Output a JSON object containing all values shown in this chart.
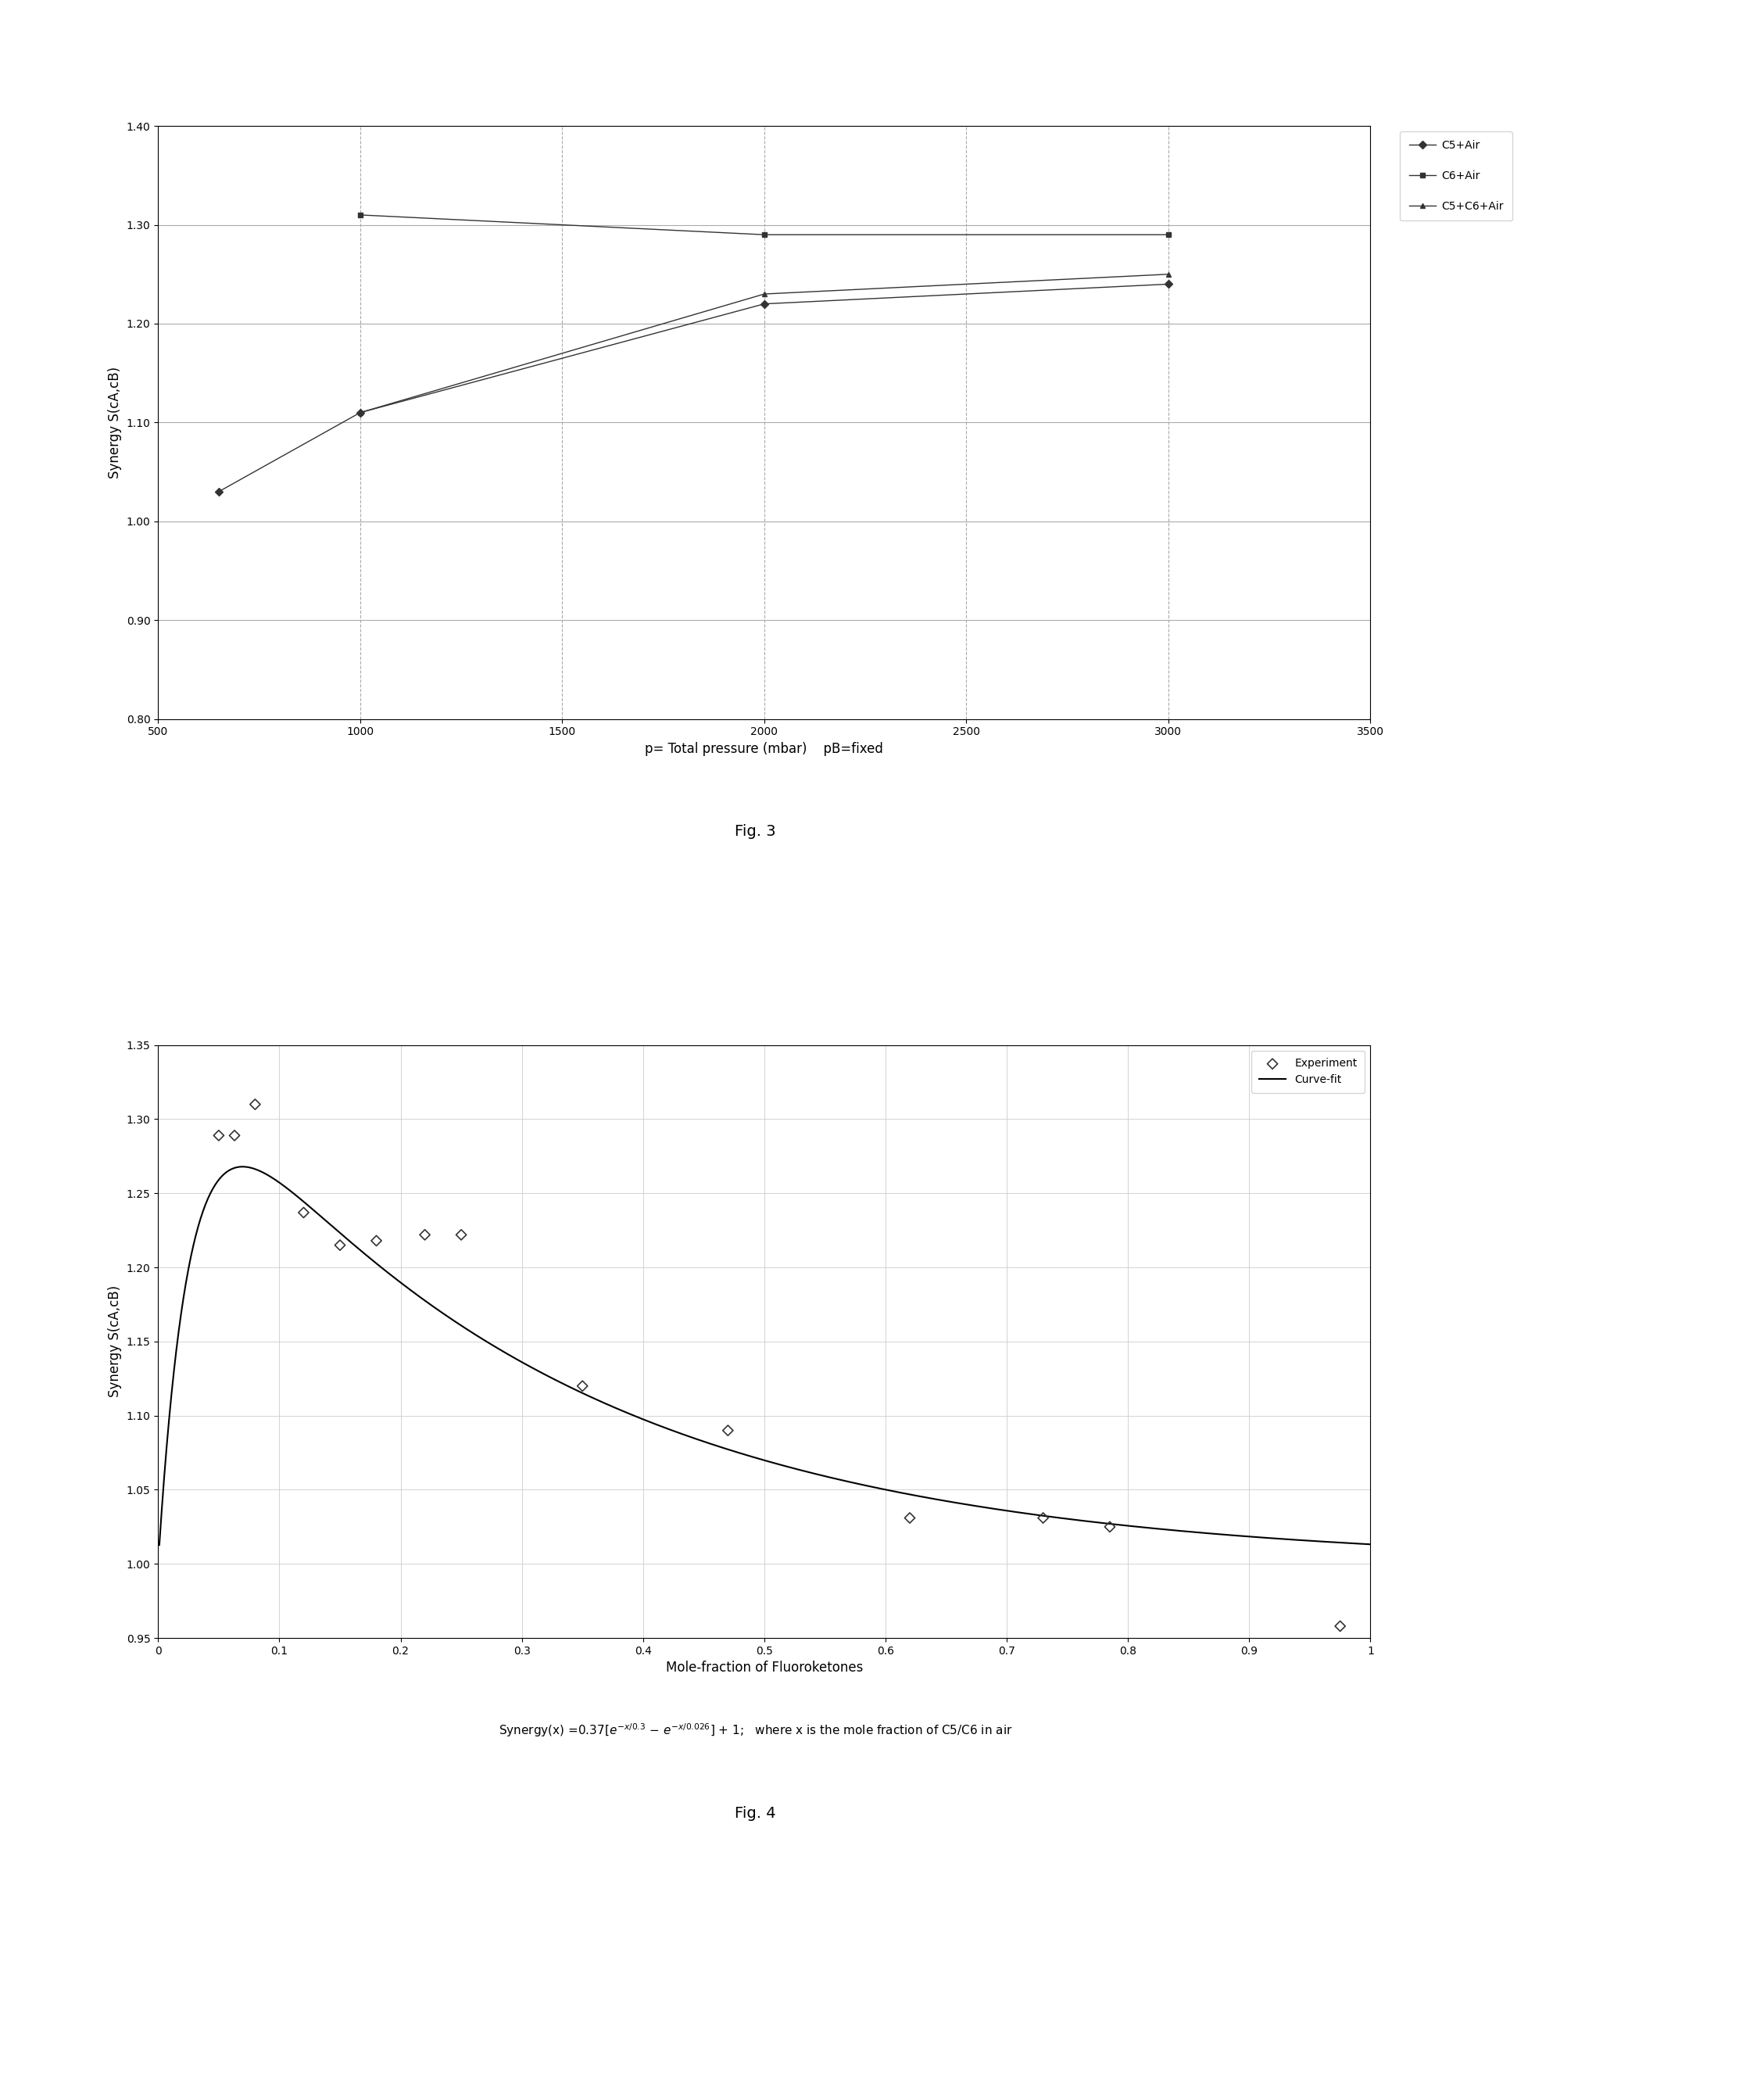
{
  "fig3": {
    "xlabel_left": "p= Total pressure (mbar)",
    "xlabel_right": "pB=fixed",
    "ylabel": "Synergy S(cA,cB)",
    "xlim": [
      500,
      3500
    ],
    "ylim": [
      0.8,
      1.4
    ],
    "xticks": [
      500,
      1000,
      1500,
      2000,
      2500,
      3000,
      3500
    ],
    "yticks": [
      0.8,
      0.9,
      1.0,
      1.1,
      1.2,
      1.3,
      1.4
    ],
    "series": [
      {
        "label": "C5+Air",
        "x": [
          650,
          1000,
          2000,
          3000
        ],
        "y": [
          1.03,
          1.11,
          1.22,
          1.24
        ],
        "color": "#333333",
        "marker": "D",
        "linestyle": "-"
      },
      {
        "label": "C6+Air",
        "x": [
          1000,
          2000,
          3000
        ],
        "y": [
          1.31,
          1.29,
          1.29
        ],
        "color": "#333333",
        "marker": "s",
        "linestyle": "-"
      },
      {
        "label": "C5+C6+Air",
        "x": [
          1000,
          2000,
          3000
        ],
        "y": [
          1.11,
          1.23,
          1.25
        ],
        "color": "#333333",
        "marker": "^",
        "linestyle": "-"
      }
    ]
  },
  "fig4": {
    "xlabel": "Mole-fraction of Fluoroketones",
    "ylabel": "Synergy S(cA,cB)",
    "formula": "Synergy(x) =0.37[e⁻ˣ/0.3 − e⁻ˣ/0.026] + 1;   where x is the mole fraction of C5/C6 in air",
    "xlim": [
      0,
      1
    ],
    "ylim": [
      0.95,
      1.35
    ],
    "xticks": [
      0.0,
      0.1,
      0.2,
      0.3,
      0.4,
      0.5,
      0.6,
      0.7,
      0.8,
      0.9,
      1.0
    ],
    "yticks": [
      0.95,
      1.0,
      1.05,
      1.1,
      1.15,
      1.2,
      1.25,
      1.3,
      1.35
    ],
    "exp_x": [
      0.05,
      0.063,
      0.08,
      0.12,
      0.15,
      0.18,
      0.22,
      0.25,
      0.35,
      0.47,
      0.62,
      0.73,
      0.785,
      0.975
    ],
    "exp_y": [
      1.289,
      1.289,
      1.31,
      1.237,
      1.215,
      1.218,
      1.222,
      1.222,
      1.12,
      1.09,
      1.031,
      1.031,
      1.025,
      0.958
    ],
    "curve_color": "#000000",
    "exp_color": "#333333"
  },
  "fig3_caption": "Fig. 3",
  "fig4_caption": "Fig. 4"
}
